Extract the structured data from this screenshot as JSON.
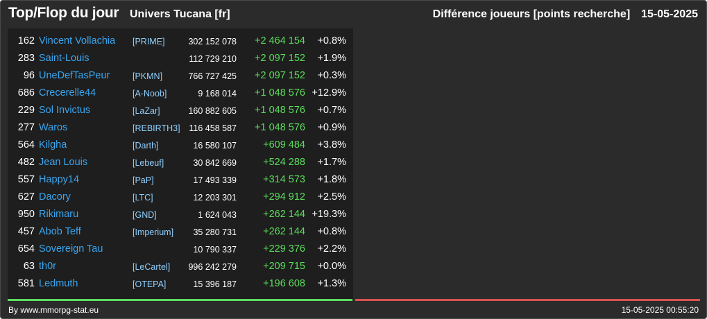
{
  "header": {
    "title": "Top/Flop du jour",
    "universe": "Univers Tucana [fr]",
    "metric": "Différence joueurs [points recherche]",
    "date": "15-05-2025"
  },
  "colors": {
    "top_accent": "#5cdc5c",
    "flop_accent": "#d9534f",
    "player_link": "#3aa6f0",
    "alliance_tag": "#8fd0ff"
  },
  "top": [
    {
      "rank": "162",
      "name": "Vincent Vollachia",
      "alliance": "[PRIME]",
      "points": "302 152 078",
      "diff": "+2 464 154",
      "pct": "+0.8%"
    },
    {
      "rank": "283",
      "name": "Saint-Louis",
      "alliance": "",
      "points": "112 729 210",
      "diff": "+2 097 152",
      "pct": "+1.9%"
    },
    {
      "rank": "96",
      "name": "UneDefTasPeur",
      "alliance": "[PKMN]",
      "points": "766 727 425",
      "diff": "+2 097 152",
      "pct": "+0.3%"
    },
    {
      "rank": "686",
      "name": "Crecerelle44",
      "alliance": "[A-Noob]",
      "points": "9 168 014",
      "diff": "+1 048 576",
      "pct": "+12.9%"
    },
    {
      "rank": "229",
      "name": "Sol Invictus",
      "alliance": "[LaZar]",
      "points": "160 882 605",
      "diff": "+1 048 576",
      "pct": "+0.7%"
    },
    {
      "rank": "277",
      "name": "Waros",
      "alliance": "[REBIRTH3]",
      "points": "116 458 587",
      "diff": "+1 048 576",
      "pct": "+0.9%"
    },
    {
      "rank": "564",
      "name": "Kilgha",
      "alliance": "[Darth]",
      "points": "16 580 107",
      "diff": "+609 484",
      "pct": "+3.8%"
    },
    {
      "rank": "482",
      "name": "Jean Louis",
      "alliance": "[Lebeuf]",
      "points": "30 842 669",
      "diff": "+524 288",
      "pct": "+1.7%"
    },
    {
      "rank": "557",
      "name": "Happy14",
      "alliance": "[PaP]",
      "points": "17 493 339",
      "diff": "+314 573",
      "pct": "+1.8%"
    },
    {
      "rank": "627",
      "name": "Dacory",
      "alliance": "[LTC]",
      "points": "12 203 301",
      "diff": "+294 912",
      "pct": "+2.5%"
    },
    {
      "rank": "950",
      "name": "Rikimaru",
      "alliance": "[GND]",
      "points": "1 624 043",
      "diff": "+262 144",
      "pct": "+19.3%"
    },
    {
      "rank": "457",
      "name": "Abob Teff",
      "alliance": "[Imperium]",
      "points": "35 280 731",
      "diff": "+262 144",
      "pct": "+0.8%"
    },
    {
      "rank": "654",
      "name": "Sovereign Tau",
      "alliance": "",
      "points": "10 790 337",
      "diff": "+229 376",
      "pct": "+2.2%"
    },
    {
      "rank": "63",
      "name": "th0r",
      "alliance": "[LeCartel]",
      "points": "996 242 279",
      "diff": "+209 715",
      "pct": "+0.0%"
    },
    {
      "rank": "581",
      "name": "Ledmuth",
      "alliance": "[OTEPA]",
      "points": "15 396 187",
      "diff": "+196 608",
      "pct": "+1.3%"
    }
  ],
  "footer": {
    "credit": "By www.mmorpg-stat.eu",
    "timestamp": "15-05-2025 00:55:20"
  }
}
